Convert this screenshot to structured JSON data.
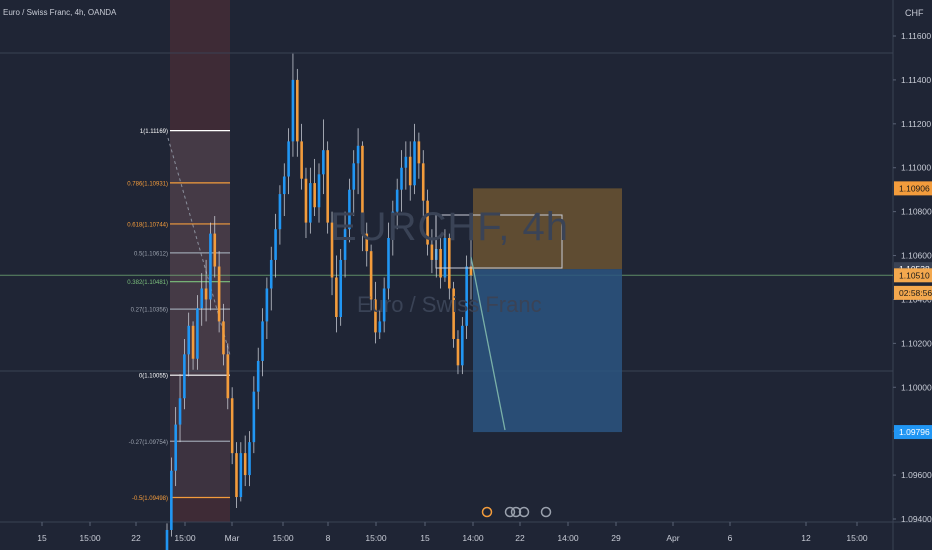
{
  "header": {
    "title": "Euro / Swiss Franc, 4h, OANDA",
    "currency": "CHF"
  },
  "watermark": {
    "symbol": "EURCHF, 4h",
    "name": "Euro / Swiss Franc"
  },
  "colors": {
    "background": "#1f2535",
    "up": "#2196f3",
    "down": "#f39c3c",
    "fib_orange": "#f39c3c",
    "fib_gray": "#9aa1ad",
    "fib_green": "#7cc17c",
    "fib_white": "#ffffff",
    "target_zone": "#2c5580",
    "stop_zone": "#6b5431"
  },
  "chart_data": {
    "type": "candlestick",
    "symbol": "EURCHF",
    "timeframe": "4h",
    "ylim": [
      1.0935,
      1.117
    ],
    "y_ticks": [
      "1.11600",
      "1.11400",
      "1.11200",
      "1.11000",
      "1.10800",
      "1.10600",
      "1.10400",
      "1.10200",
      "1.10000",
      "1.09800",
      "1.09600",
      "1.09400"
    ],
    "x_ticks": [
      "15",
      "15:00",
      "22",
      "15:00",
      "Mar",
      "15:00",
      "8",
      "15:00",
      "15",
      "14:00",
      "22",
      "14:00",
      "29",
      "Apr",
      "6",
      "12",
      "15:00"
    ],
    "price_labels": [
      {
        "label": "1.10906",
        "value": 1.10906,
        "color": "#f39c3c"
      },
      {
        "label": "1.10538",
        "value": 1.10538,
        "color": "#3a4254"
      },
      {
        "label": "1.10510",
        "value": 1.1051,
        "color": "#f3a84e"
      },
      {
        "label": "02:58:56",
        "value": 1.1043,
        "color": "#f3a84e"
      },
      {
        "label": "1.09796",
        "value": 1.09796,
        "color": "#2196f3"
      }
    ],
    "fibonacci": [
      {
        "label": "1(1.11169)",
        "value": 1.11169,
        "color": "#ffffff"
      },
      {
        "label": "0.786(1.10931)",
        "value": 1.10931,
        "color": "#f39c3c"
      },
      {
        "label": "0.618(1.10744)",
        "value": 1.10744,
        "color": "#f39c3c"
      },
      {
        "label": "0.5(1.10612)",
        "value": 1.10612,
        "color": "#9aa1ad"
      },
      {
        "label": "0.382(1.10481)",
        "value": 1.10481,
        "color": "#7cc17c"
      },
      {
        "label": "0.27(1.10356)",
        "value": 1.10356,
        "color": "#9aa1ad"
      },
      {
        "label": "0(1.10055)",
        "value": 1.10055,
        "color": "#ffffff"
      },
      {
        "label": "-0.27(1.09754)",
        "value": 1.09754,
        "color": "#9aa1ad"
      },
      {
        "label": "-0.5(1.09498)",
        "value": 1.09498,
        "color": "#f39c3c"
      }
    ],
    "position": {
      "entry": 1.10538,
      "stop": 1.10906,
      "target": 1.09796
    },
    "candles": [
      [
        1.0925,
        1.0938,
        1.092,
        1.0935
      ],
      [
        1.0935,
        1.0968,
        1.0932,
        1.0962
      ],
      [
        1.0962,
        1.0991,
        1.0955,
        1.0983
      ],
      [
        1.0983,
        1.1006,
        1.0975,
        1.0995
      ],
      [
        1.0995,
        1.1022,
        1.099,
        1.1015
      ],
      [
        1.1015,
        1.1034,
        1.1005,
        1.1028
      ],
      [
        1.1028,
        1.103,
        1.1008,
        1.1013
      ],
      [
        1.1013,
        1.1042,
        1.1008,
        1.1036
      ],
      [
        1.1036,
        1.1052,
        1.1028,
        1.1045
      ],
      [
        1.1045,
        1.1058,
        1.103,
        1.104
      ],
      [
        1.104,
        1.1075,
        1.1035,
        1.107
      ],
      [
        1.107,
        1.1078,
        1.105,
        1.1055
      ],
      [
        1.1055,
        1.1062,
        1.1025,
        1.103
      ],
      [
        1.103,
        1.1038,
        1.101,
        1.1015
      ],
      [
        1.1015,
        1.102,
        1.099,
        1.0995
      ],
      [
        1.0995,
        1.1,
        1.0965,
        1.097
      ],
      [
        1.097,
        1.0975,
        1.0945,
        1.095
      ],
      [
        1.095,
        1.0975,
        1.0948,
        1.097
      ],
      [
        1.097,
        1.0978,
        1.0955,
        1.096
      ],
      [
        1.096,
        1.098,
        1.0955,
        1.0975
      ],
      [
        1.0975,
        1.1005,
        1.097,
        1.0998
      ],
      [
        1.0998,
        1.1018,
        1.099,
        1.1012
      ],
      [
        1.1012,
        1.1036,
        1.1005,
        1.103
      ],
      [
        1.103,
        1.105,
        1.1022,
        1.1045
      ],
      [
        1.1045,
        1.1064,
        1.1035,
        1.1058
      ],
      [
        1.1058,
        1.1079,
        1.105,
        1.1072
      ],
      [
        1.1072,
        1.1092,
        1.1065,
        1.1088
      ],
      [
        1.1088,
        1.1102,
        1.1078,
        1.1096
      ],
      [
        1.1096,
        1.1118,
        1.1088,
        1.1112
      ],
      [
        1.1112,
        1.1152,
        1.1105,
        1.114
      ],
      [
        1.114,
        1.1145,
        1.1105,
        1.1112
      ],
      [
        1.1112,
        1.112,
        1.109,
        1.1095
      ],
      [
        1.1095,
        1.11,
        1.1068,
        1.1075
      ],
      [
        1.1075,
        1.11,
        1.107,
        1.1093
      ],
      [
        1.1093,
        1.1104,
        1.1078,
        1.1082
      ],
      [
        1.1082,
        1.1102,
        1.1075,
        1.1097
      ],
      [
        1.1097,
        1.1122,
        1.1088,
        1.1108
      ],
      [
        1.1108,
        1.1112,
        1.107,
        1.1075
      ],
      [
        1.1075,
        1.108,
        1.1042,
        1.105
      ],
      [
        1.105,
        1.106,
        1.1025,
        1.1032
      ],
      [
        1.1032,
        1.1063,
        1.1028,
        1.1058
      ],
      [
        1.1058,
        1.108,
        1.105,
        1.1072
      ],
      [
        1.1072,
        1.1095,
        1.1066,
        1.109
      ],
      [
        1.109,
        1.1108,
        1.1078,
        1.1102
      ],
      [
        1.1102,
        1.1118,
        1.1088,
        1.111
      ],
      [
        1.111,
        1.1112,
        1.1062,
        1.107
      ],
      [
        1.107,
        1.1075,
        1.1055,
        1.1062
      ],
      [
        1.1062,
        1.1065,
        1.1035,
        1.104
      ],
      [
        1.104,
        1.1048,
        1.102,
        1.1025
      ],
      [
        1.1025,
        1.1035,
        1.1022,
        1.103
      ],
      [
        1.103,
        1.105,
        1.1025,
        1.1045
      ],
      [
        1.1045,
        1.1075,
        1.104,
        1.1068
      ],
      [
        1.1068,
        1.1085,
        1.106,
        1.108
      ],
      [
        1.108,
        1.1095,
        1.1072,
        1.109
      ],
      [
        1.109,
        1.1108,
        1.108,
        1.11
      ],
      [
        1.11,
        1.1112,
        1.109,
        1.1105
      ],
      [
        1.1105,
        1.1112,
        1.1085,
        1.1092
      ],
      [
        1.1092,
        1.112,
        1.1088,
        1.1112
      ],
      [
        1.1112,
        1.1116,
        1.1095,
        1.1102
      ],
      [
        1.1102,
        1.1108,
        1.1078,
        1.1085
      ],
      [
        1.1085,
        1.109,
        1.106,
        1.1065
      ],
      [
        1.1065,
        1.1072,
        1.1052,
        1.1058
      ],
      [
        1.1058,
        1.1068,
        1.105,
        1.1063
      ],
      [
        1.1063,
        1.1068,
        1.1045,
        1.105
      ],
      [
        1.105,
        1.1072,
        1.1048,
        1.1068
      ],
      [
        1.1068,
        1.107,
        1.104,
        1.1045
      ],
      [
        1.1045,
        1.1048,
        1.1018,
        1.1022
      ],
      [
        1.1022,
        1.1026,
        1.1006,
        1.101
      ],
      [
        1.101,
        1.1032,
        1.1006,
        1.1028
      ],
      [
        1.1028,
        1.106,
        1.1022,
        1.1055
      ],
      [
        1.1055,
        1.1068,
        1.104,
        1.1051
      ]
    ]
  }
}
